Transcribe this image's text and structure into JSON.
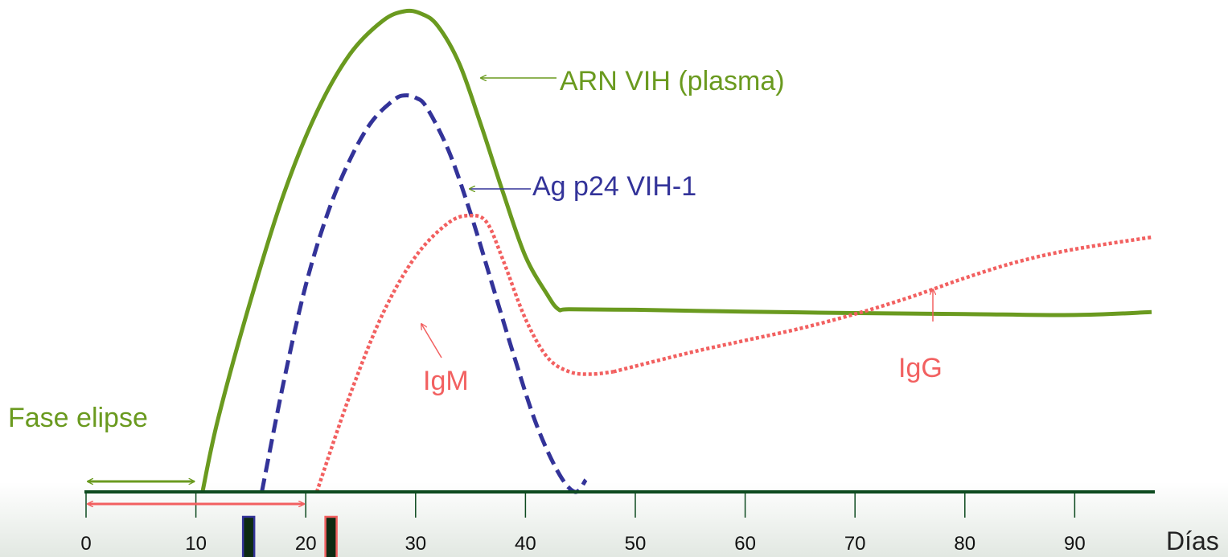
{
  "chart_data": {
    "type": "line",
    "xlabel": "Días",
    "xlim": [
      0,
      97
    ],
    "ylim": [
      0,
      100
    ],
    "x_ticks": [
      0,
      10,
      20,
      30,
      40,
      50,
      60,
      70,
      80,
      90
    ],
    "series": [
      {
        "name": "ARN VIH (plasma)",
        "color": "#6a9a1f",
        "style": "solid",
        "x": [
          10.6,
          12,
          15,
          18,
          21,
          24,
          27,
          29,
          30.5,
          32,
          34,
          36,
          38,
          40,
          42,
          43,
          44,
          50,
          60,
          70,
          80,
          90,
          97
        ],
        "y": [
          0,
          15,
          40,
          62,
          79,
          91,
          98,
          100,
          99.5,
          97,
          89,
          76,
          62,
          49,
          41,
          38,
          38,
          37.9,
          37.5,
          37.2,
          37,
          36.8,
          37.4
        ]
      },
      {
        "name": "Ag p24 VIH-1",
        "color": "#333399",
        "style": "dashed",
        "x": [
          16,
          18,
          20,
          22,
          24,
          26,
          28,
          29,
          30,
          31,
          33,
          35,
          37,
          39,
          41,
          43,
          44.5,
          45.5
        ],
        "y": [
          0,
          23,
          43,
          58,
          69,
          77,
          81.5,
          82.5,
          82,
          80,
          71,
          58,
          43,
          28,
          14,
          4,
          0,
          2.5
        ]
      },
      {
        "name": "IgM",
        "color": "#f26060",
        "style": "dotted",
        "x": [
          21,
          24,
          27,
          30,
          33,
          35,
          36.5,
          38,
          40,
          42,
          44,
          46,
          48
        ],
        "y": [
          0,
          20,
          37,
          49,
          56,
          57.5,
          56,
          48,
          36,
          28,
          25,
          24.5,
          25
        ]
      },
      {
        "name": "IgG",
        "color": "#f26060",
        "style": "dotted",
        "x": [
          48,
          55,
          60,
          65,
          70,
          75,
          80,
          85,
          90,
          97
        ],
        "y": [
          25,
          29,
          31.5,
          34,
          37,
          40.5,
          44.5,
          48,
          50.5,
          53
        ]
      }
    ],
    "annotations": [
      {
        "label": "ARN VIH (plasma)",
        "color": "#6a9a1f"
      },
      {
        "label": "Ag p24 VIH-1",
        "color": "#333399"
      },
      {
        "label": "IgM",
        "color": "#f26060"
      },
      {
        "label": "IgG",
        "color": "#f26060"
      },
      {
        "label": "Fase elipse",
        "color": "#6a9a1f"
      }
    ],
    "ranges": [
      {
        "from": 0,
        "to": 10,
        "color": "#6a9a1f"
      },
      {
        "from": 0,
        "to": 20,
        "color": "#f26060"
      }
    ],
    "markers": [
      {
        "x": 14.8,
        "fill": "#0d2b12",
        "border": "#333399"
      },
      {
        "x": 22.3,
        "fill": "#0d2b12",
        "border": "#f26060"
      }
    ],
    "axis_color": "#0d4a1f",
    "grid": false,
    "legend": "none"
  }
}
